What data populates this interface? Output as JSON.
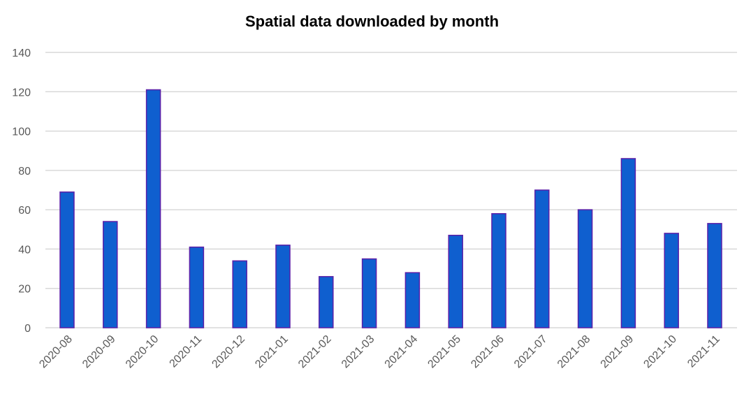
{
  "chart_data": {
    "type": "bar",
    "title": "Spatial data downloaded by month",
    "xlabel": "",
    "ylabel": "",
    "categories": [
      "2020-08",
      "2020-09",
      "2020-10",
      "2020-11",
      "2020-12",
      "2021-01",
      "2021-02",
      "2021-03",
      "2021-04",
      "2021-05",
      "2021-06",
      "2021-07",
      "2021-08",
      "2021-09",
      "2021-10",
      "2021-11"
    ],
    "values": [
      69,
      54,
      121,
      41,
      34,
      42,
      26,
      35,
      28,
      47,
      58,
      70,
      60,
      86,
      48,
      53
    ],
    "ylim": [
      0,
      140
    ],
    "yticks": [
      "0",
      "20",
      "40",
      "60",
      "80",
      "100",
      "120",
      "140"
    ],
    "grid": true,
    "legend": "none",
    "bar_color": "#0f5fcf",
    "bar_edge_color": "#5a1fa8",
    "grid_color": "#d9d9d9"
  }
}
